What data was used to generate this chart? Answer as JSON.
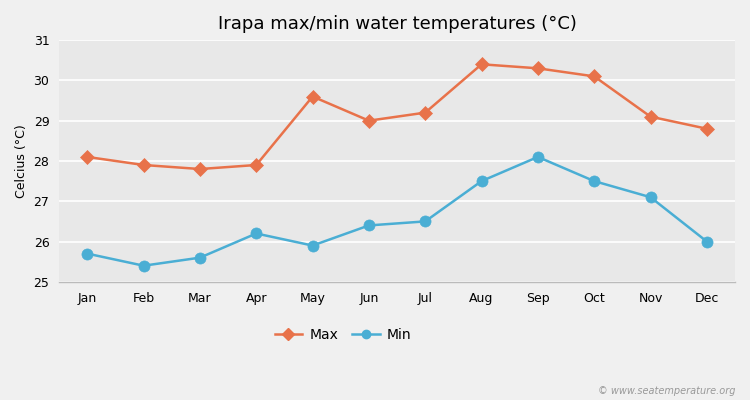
{
  "title": "Irapa max/min water temperatures (°C)",
  "ylabel": "Celcius (°C)",
  "months": [
    "Jan",
    "Feb",
    "Mar",
    "Apr",
    "May",
    "Jun",
    "Jul",
    "Aug",
    "Sep",
    "Oct",
    "Nov",
    "Dec"
  ],
  "max_values": [
    28.1,
    27.9,
    27.8,
    27.9,
    29.6,
    29.0,
    29.2,
    30.4,
    30.3,
    30.1,
    29.1,
    28.8
  ],
  "min_values": [
    25.7,
    25.4,
    25.6,
    26.2,
    25.9,
    26.4,
    26.5,
    27.5,
    28.1,
    27.5,
    27.1,
    26.0
  ],
  "max_color": "#e8724a",
  "min_color": "#4aaed4",
  "fig_bg_color": "#f0f0f0",
  "plot_bg_color": "#e8e8e8",
  "grid_color": "#ffffff",
  "ylim": [
    25,
    31
  ],
  "yticks": [
    25,
    26,
    27,
    28,
    29,
    30,
    31
  ],
  "watermark": "© www.seatemperature.org",
  "marker_size_max": 7,
  "marker_size_min": 8,
  "line_width": 1.8,
  "title_fontsize": 13,
  "axis_fontsize": 9,
  "legend_fontsize": 10
}
